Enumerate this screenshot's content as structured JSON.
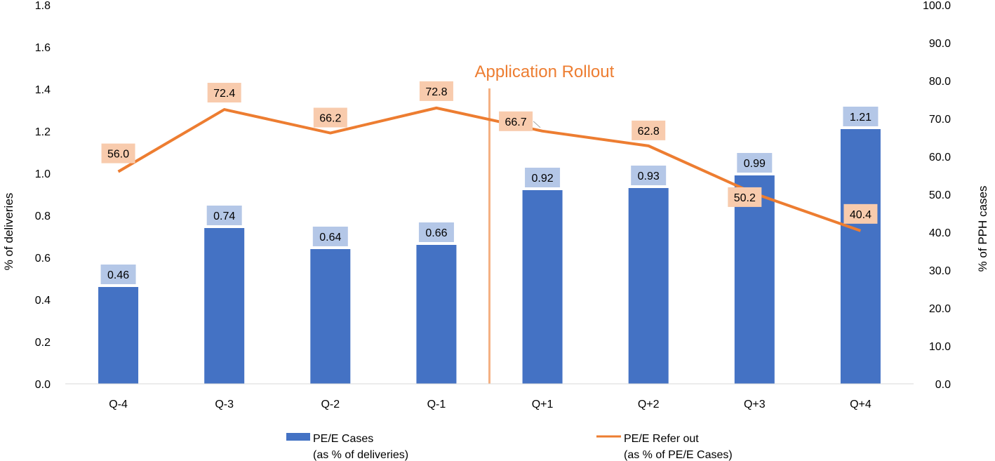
{
  "colors": {
    "bar": "#4472C4",
    "bar_label_bg": "#B4C7E7",
    "line": "#ED7D31",
    "line_label_bg": "#F8CBAD",
    "rollout_line": "#F4B183",
    "rollout_text": "#ED7D31"
  },
  "chart_data": {
    "type": "bar",
    "categories": [
      "Q-4",
      "Q-3",
      "Q-2",
      "Q-1",
      "Q+1",
      "Q+2",
      "Q+3",
      "Q+4"
    ],
    "series": [
      {
        "name": "PE/E Cases",
        "name_line2": "(as % of deliveries)",
        "type": "bar",
        "axis": "left",
        "values": [
          0.46,
          0.74,
          0.64,
          0.66,
          0.92,
          0.93,
          0.99,
          1.21
        ],
        "labels": [
          "0.46",
          "0.74",
          "0.64",
          "0.66",
          "0.92",
          "0.93",
          "0.99",
          "1.21"
        ]
      },
      {
        "name": "PE/E Refer out",
        "name_line2": "(as % of PE/E Cases)",
        "type": "line",
        "axis": "right",
        "values": [
          56.0,
          72.4,
          66.2,
          72.8,
          66.7,
          62.8,
          50.2,
          40.4
        ],
        "labels": [
          "56.0",
          "72.4",
          "66.2",
          "72.8",
          "66.7",
          "62.8",
          "50.2",
          "40.4"
        ]
      }
    ],
    "ylabel": "% of deliveries",
    "y2label": "% of  PPH cases",
    "ylim": [
      0,
      1.8
    ],
    "y2lim": [
      0,
      100
    ],
    "yticks": [
      "0.0",
      "0.2",
      "0.4",
      "0.6",
      "0.8",
      "1.0",
      "1.2",
      "1.4",
      "1.6",
      "1.8"
    ],
    "y2ticks": [
      "0.0",
      "10.0",
      "20.0",
      "30.0",
      "40.0",
      "50.0",
      "60.0",
      "70.0",
      "80.0",
      "90.0",
      "100.0"
    ],
    "annotation": {
      "text": "Application Rollout",
      "after_category": "Q-1"
    },
    "grid": false,
    "legend": "bottom"
  }
}
